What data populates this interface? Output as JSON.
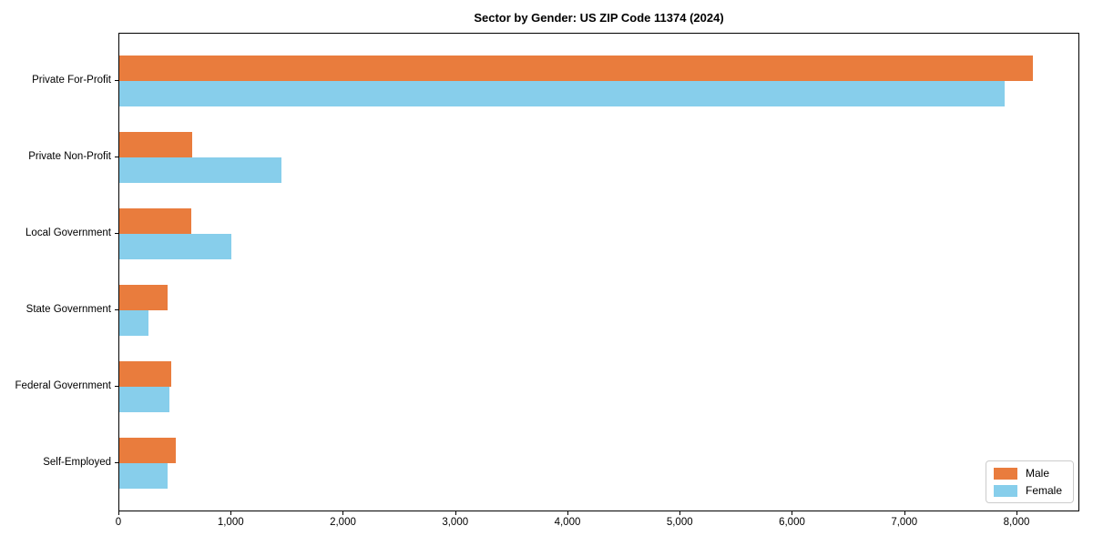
{
  "chart_data": {
    "type": "bar",
    "orientation": "horizontal",
    "title": "Sector by Gender: US ZIP Code 11374 (2024)",
    "categories": [
      "Private For-Profit",
      "Private Non-Profit",
      "Local Government",
      "State Government",
      "Federal Government",
      "Self-Employed"
    ],
    "series": [
      {
        "name": "Male",
        "color": "#e97c3d",
        "values": [
          8150,
          650,
          640,
          430,
          460,
          500
        ]
      },
      {
        "name": "Female",
        "color": "#87ceeb",
        "values": [
          7900,
          1450,
          1000,
          260,
          450,
          430
        ]
      }
    ],
    "xlim": [
      0,
      8560
    ],
    "xticks": [
      0,
      1000,
      2000,
      3000,
      4000,
      5000,
      6000,
      7000,
      8000
    ],
    "xtick_labels": [
      "0",
      "1,000",
      "2,000",
      "3,000",
      "4,000",
      "5,000",
      "6,000",
      "7,000",
      "8,000"
    ],
    "legend_position": "lower right",
    "grid": false,
    "background_color": "#ffffff",
    "axis_color": "#000000"
  }
}
